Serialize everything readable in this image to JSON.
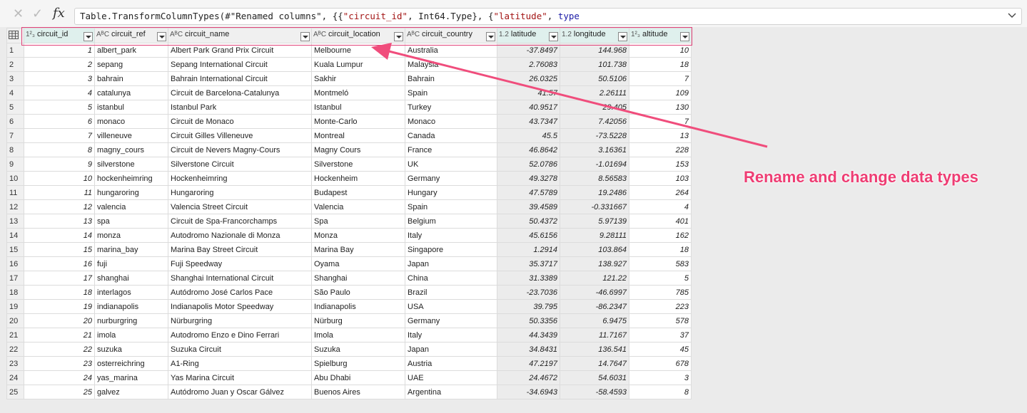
{
  "formula_bar": {
    "cancel_icon": "x-icon",
    "confirm_icon": "check-icon",
    "fx_label": "fx",
    "formula_plain": "Table.TransformColumnTypes(#\"Renamed columns\", {{",
    "formula_s1": "\"circuit_id\"",
    "formula_mid": ", Int64.Type}, {",
    "formula_s2": "\"latitude\"",
    "formula_sep": ", ",
    "formula_kw": "type"
  },
  "annotation": {
    "text": "Rename and change data types",
    "color": "#ee3d73"
  },
  "columns": [
    {
      "type_icon": "1²₃",
      "name": "circuit_id"
    },
    {
      "type_icon": "AᴮC",
      "name": "circuit_ref"
    },
    {
      "type_icon": "AᴮC",
      "name": "circuit_name"
    },
    {
      "type_icon": "AᴮC",
      "name": "circuit_location"
    },
    {
      "type_icon": "AᴮC",
      "name": "circuit_country"
    },
    {
      "type_icon": "1.2",
      "name": "latitude"
    },
    {
      "type_icon": "1.2",
      "name": "longitude"
    },
    {
      "type_icon": "1²₃",
      "name": "altitude"
    }
  ],
  "rows": [
    [
      "1",
      "albert_park",
      "Albert Park Grand Prix Circuit",
      "Melbourne",
      "Australia",
      "-37.8497",
      "144.968",
      "10"
    ],
    [
      "2",
      "sepang",
      "Sepang International Circuit",
      "Kuala Lumpur",
      "Malaysia",
      "2.76083",
      "101.738",
      "18"
    ],
    [
      "3",
      "bahrain",
      "Bahrain International Circuit",
      "Sakhir",
      "Bahrain",
      "26.0325",
      "50.5106",
      "7"
    ],
    [
      "4",
      "catalunya",
      "Circuit de Barcelona-Catalunya",
      "Montmeló",
      "Spain",
      "41.57",
      "2.26111",
      "109"
    ],
    [
      "5",
      "istanbul",
      "Istanbul Park",
      "Istanbul",
      "Turkey",
      "40.9517",
      "29.405",
      "130"
    ],
    [
      "6",
      "monaco",
      "Circuit de Monaco",
      "Monte-Carlo",
      "Monaco",
      "43.7347",
      "7.42056",
      "7"
    ],
    [
      "7",
      "villeneuve",
      "Circuit Gilles Villeneuve",
      "Montreal",
      "Canada",
      "45.5",
      "-73.5228",
      "13"
    ],
    [
      "8",
      "magny_cours",
      "Circuit de Nevers Magny-Cours",
      "Magny Cours",
      "France",
      "46.8642",
      "3.16361",
      "228"
    ],
    [
      "9",
      "silverstone",
      "Silverstone Circuit",
      "Silverstone",
      "UK",
      "52.0786",
      "-1.01694",
      "153"
    ],
    [
      "10",
      "hockenheimring",
      "Hockenheimring",
      "Hockenheim",
      "Germany",
      "49.3278",
      "8.56583",
      "103"
    ],
    [
      "11",
      "hungaroring",
      "Hungaroring",
      "Budapest",
      "Hungary",
      "47.5789",
      "19.2486",
      "264"
    ],
    [
      "12",
      "valencia",
      "Valencia Street Circuit",
      "Valencia",
      "Spain",
      "39.4589",
      "-0.331667",
      "4"
    ],
    [
      "13",
      "spa",
      "Circuit de Spa-Francorchamps",
      "Spa",
      "Belgium",
      "50.4372",
      "5.97139",
      "401"
    ],
    [
      "14",
      "monza",
      "Autodromo Nazionale di Monza",
      "Monza",
      "Italy",
      "45.6156",
      "9.28111",
      "162"
    ],
    [
      "15",
      "marina_bay",
      "Marina Bay Street Circuit",
      "Marina Bay",
      "Singapore",
      "1.2914",
      "103.864",
      "18"
    ],
    [
      "16",
      "fuji",
      "Fuji Speedway",
      "Oyama",
      "Japan",
      "35.3717",
      "138.927",
      "583"
    ],
    [
      "17",
      "shanghai",
      "Shanghai International Circuit",
      "Shanghai",
      "China",
      "31.3389",
      "121.22",
      "5"
    ],
    [
      "18",
      "interlagos",
      "Autódromo José Carlos Pace",
      "São Paulo",
      "Brazil",
      "-23.7036",
      "-46.6997",
      "785"
    ],
    [
      "19",
      "indianapolis",
      "Indianapolis Motor Speedway",
      "Indianapolis",
      "USA",
      "39.795",
      "-86.2347",
      "223"
    ],
    [
      "20",
      "nurburgring",
      "Nürburgring",
      "Nürburg",
      "Germany",
      "50.3356",
      "6.9475",
      "578"
    ],
    [
      "21",
      "imola",
      "Autodromo Enzo e Dino Ferrari",
      "Imola",
      "Italy",
      "44.3439",
      "11.7167",
      "37"
    ],
    [
      "22",
      "suzuka",
      "Suzuka Circuit",
      "Suzuka",
      "Japan",
      "34.8431",
      "136.541",
      "45"
    ],
    [
      "23",
      "osterreichring",
      "A1-Ring",
      "Spielburg",
      "Austria",
      "47.2197",
      "14.7647",
      "678"
    ],
    [
      "24",
      "yas_marina",
      "Yas Marina Circuit",
      "Abu Dhabi",
      "UAE",
      "24.4672",
      "54.6031",
      "3"
    ],
    [
      "25",
      "galvez",
      "Autódromo Juan y Oscar Gálvez",
      "Buenos Aires",
      "Argentina",
      "-34.6943",
      "-58.4593",
      "8"
    ]
  ]
}
